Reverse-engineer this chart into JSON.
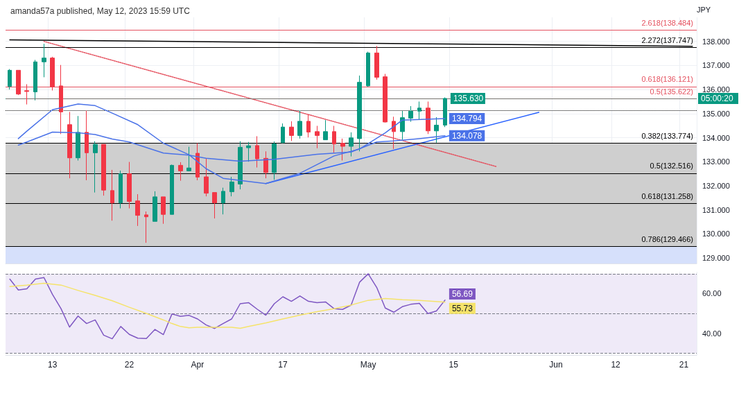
{
  "chart_data": [
    {
      "type": "candlestick",
      "title": "amanda57a published, May 12, 2023 15:59 UTC",
      "ylabel": "JPY",
      "categories": [
        null,
        null,
        null,
        null,
        null,
        null,
        null,
        null,
        null,
        null,
        null,
        null,
        null,
        null,
        null,
        null,
        null,
        null,
        null,
        null,
        null,
        null,
        null,
        null,
        null,
        null,
        null,
        null,
        null,
        null,
        null,
        null,
        null,
        null,
        null,
        null,
        null,
        null,
        null,
        null,
        null,
        null,
        null,
        null,
        null,
        null,
        null,
        null,
        null,
        null,
        null,
        null,
        null,
        null,
        null,
        null,
        null,
        null,
        null,
        null,
        null,
        null,
        null,
        null,
        null,
        null,
        null,
        null,
        null,
        null,
        null,
        null,
        null,
        null,
        null,
        null,
        null,
        null,
        null,
        null,
        null
      ],
      "ohlc": [
        [
          136.13,
          136.85,
          136.0,
          136.8
        ],
        [
          136.8,
          136.8,
          135.77,
          135.81
        ],
        [
          135.95,
          136.22,
          135.38,
          135.92
        ],
        [
          135.9,
          137.23,
          135.55,
          137.15
        ],
        [
          137.15,
          137.9,
          136.51,
          137.31
        ],
        [
          137.31,
          137.36,
          135.96,
          136.12
        ],
        [
          136.15,
          137.02,
          134.15,
          135.07
        ],
        [
          134.54,
          135.07,
          132.31,
          133.16
        ],
        [
          133.16,
          134.9,
          133.05,
          134.22
        ],
        [
          134.22,
          135.12,
          132.23,
          133.37
        ],
        [
          133.37,
          133.85,
          131.72,
          133.72
        ],
        [
          133.72,
          133.72,
          131.59,
          131.82
        ],
        [
          131.8,
          132.66,
          130.55,
          131.29
        ],
        [
          131.29,
          132.63,
          131.06,
          132.5
        ],
        [
          132.5,
          132.99,
          131.06,
          131.35
        ],
        [
          131.37,
          131.65,
          130.33,
          130.77
        ],
        [
          130.79,
          130.93,
          129.63,
          130.71
        ],
        [
          130.52,
          131.77,
          130.52,
          131.54
        ],
        [
          131.54,
          131.54,
          130.42,
          130.81
        ],
        [
          130.81,
          132.88,
          130.81,
          132.85
        ],
        [
          132.85,
          132.98,
          132.21,
          132.62
        ],
        [
          132.62,
          133.62,
          132.6,
          132.74
        ],
        [
          133.35,
          133.77,
          132.23,
          132.36
        ],
        [
          132.37,
          133.14,
          131.56,
          131.69
        ],
        [
          131.72,
          131.72,
          130.64,
          131.29
        ],
        [
          131.29,
          131.92,
          130.81,
          131.77
        ],
        [
          131.75,
          132.37,
          131.56,
          132.16
        ],
        [
          132.07,
          133.85,
          131.85,
          133.6
        ],
        [
          133.58,
          133.82,
          133.0,
          133.66
        ],
        [
          133.67,
          134.06,
          132.76,
          133.12
        ],
        [
          133.14,
          133.43,
          132.31,
          132.55
        ],
        [
          132.55,
          133.84,
          132.25,
          133.74
        ],
        [
          133.79,
          134.59,
          133.77,
          134.44
        ],
        [
          134.44,
          134.68,
          133.86,
          134.09
        ],
        [
          134.09,
          135.14,
          133.96,
          134.68
        ],
        [
          134.68,
          134.97,
          134.01,
          134.23
        ],
        [
          134.25,
          134.49,
          133.56,
          134.09
        ],
        [
          133.91,
          134.73,
          133.91,
          134.25
        ],
        [
          134.25,
          134.49,
          133.38,
          133.74
        ],
        [
          133.77,
          133.96,
          133.05,
          133.64
        ],
        [
          133.64,
          134.22,
          133.22,
          133.99
        ],
        [
          133.96,
          136.58,
          133.43,
          136.3
        ],
        [
          136.15,
          137.57,
          136.12,
          137.52
        ],
        [
          137.52,
          137.81,
          136.41,
          136.51
        ],
        [
          136.53,
          136.65,
          134.63,
          134.65
        ],
        [
          134.68,
          134.87,
          133.53,
          134.25
        ],
        [
          134.25,
          135.11,
          133.91,
          134.83
        ],
        [
          134.81,
          135.31,
          134.66,
          135.1
        ],
        [
          135.1,
          135.5,
          134.75,
          135.23
        ],
        [
          135.23,
          135.5,
          134.15,
          134.28
        ],
        [
          134.28,
          134.85,
          133.79,
          134.52
        ],
        [
          134.52,
          135.67,
          134.44,
          135.63
        ],
        null,
        null,
        null,
        null,
        null,
        null,
        null,
        null,
        null,
        null,
        null,
        null,
        null,
        null,
        null,
        null,
        null,
        null,
        null,
        null,
        null,
        null,
        null,
        null,
        null,
        null,
        null,
        null,
        null
      ],
      "value_labels": [
        null,
        null,
        null,
        null,
        null,
        null,
        null,
        null,
        null,
        null,
        null,
        null,
        null,
        null,
        null,
        null,
        null,
        null,
        null,
        null,
        null,
        null,
        null,
        null,
        null,
        null,
        null,
        null,
        null,
        null,
        null,
        null,
        null,
        null,
        null,
        null,
        null,
        null,
        null,
        null,
        null,
        null,
        null,
        null,
        null,
        null,
        null,
        null,
        null,
        null,
        null,
        "135.630",
        null,
        null,
        null,
        null,
        null,
        null,
        null,
        null,
        null,
        null,
        null,
        null,
        null,
        null,
        null,
        null,
        null,
        null,
        null,
        null,
        null,
        null,
        null,
        null,
        null,
        null,
        null,
        null,
        null
      ],
      "colors": [
        "#089981",
        "#f23645",
        "#f23645",
        "#089981",
        "#089981",
        "#f23645",
        "#f23645",
        "#f23645",
        "#089981",
        "#f23645",
        "#089981",
        "#f23645",
        "#f23645",
        "#089981",
        "#f23645",
        "#f23645",
        "#f23645",
        "#089981",
        "#f23645",
        "#089981",
        "#f23645",
        "#089981",
        "#f23645",
        "#f23645",
        "#f23645",
        "#089981",
        "#089981",
        "#089981",
        "#089981",
        "#f23645",
        "#f23645",
        "#089981",
        "#089981",
        "#f23645",
        "#089981",
        "#f23645",
        "#f23645",
        "#089981",
        "#f23645",
        "#f23645",
        "#089981",
        "#089981",
        "#089981",
        "#f23645",
        "#f23645",
        "#f23645",
        "#089981",
        "#089981",
        "#089981",
        "#f23645",
        "#089981",
        "#089981",
        null,
        null,
        null,
        null,
        null,
        null,
        null,
        null,
        null,
        null,
        null,
        null,
        null,
        null,
        null,
        null,
        null,
        null,
        null,
        null,
        null,
        null,
        null,
        null,
        null,
        null,
        null,
        null,
        null
      ],
      "series": [
        {
          "type": "line",
          "color": "#4a72e8",
          "line_style": "solid",
          "values": [
            null,
            133.96,
            134.27,
            null,
            null,
            135.16,
            null,
            null,
            135.4,
            null,
            135.33,
            null,
            135.02,
            null,
            null,
            134.54,
            null,
            null,
            133.77,
            null,
            null,
            133.29,
            null,
            132.71,
            null,
            132.31,
            null,
            null,
            null,
            null,
            132.09,
            null,
            null,
            null,
            132.52,
            null,
            null,
            null,
            133.24,
            null,
            null,
            133.53,
            null,
            null,
            134.2,
            null,
            134.73,
            null,
            null,
            null,
            null,
            134.794,
            null,
            null,
            null,
            null,
            null,
            null,
            null,
            null,
            null,
            null,
            null,
            null,
            null,
            null,
            null,
            null,
            null,
            null,
            null,
            null,
            null,
            null,
            null,
            null,
            null,
            null,
            null,
            null,
            null
          ],
          "value_labels": [
            null,
            null,
            null,
            null,
            null,
            null,
            null,
            null,
            null,
            null,
            null,
            null,
            null,
            null,
            null,
            null,
            null,
            null,
            null,
            null,
            null,
            null,
            null,
            null,
            null,
            null,
            null,
            null,
            null,
            null,
            null,
            null,
            null,
            null,
            null,
            null,
            null,
            null,
            null,
            null,
            null,
            null,
            null,
            null,
            null,
            null,
            null,
            null,
            null,
            null,
            null,
            "134.794",
            null,
            null,
            null,
            null,
            null,
            null,
            null,
            null,
            null,
            null,
            null,
            null,
            null,
            null,
            null,
            null,
            null,
            null,
            null,
            null,
            null,
            null,
            null,
            null,
            null,
            null,
            null,
            null,
            null
          ]
        },
        {
          "type": "line",
          "color": "#4a72e8",
          "line_style": "solid",
          "values": [
            null,
            133.69,
            133.82,
            null,
            null,
            134.23,
            null,
            null,
            134.2,
            null,
            134.13,
            null,
            133.94,
            null,
            133.82,
            null,
            null,
            null,
            133.36,
            null,
            null,
            133.27,
            null,
            133.14,
            null,
            null,
            null,
            133.02,
            null,
            null,
            null,
            133.1,
            null,
            null,
            null,
            null,
            133.31,
            null,
            null,
            null,
            133.4,
            null,
            null,
            133.82,
            null,
            133.86,
            null,
            null,
            133.96,
            null,
            null,
            134.078,
            null,
            null,
            null,
            null,
            null,
            null,
            null,
            null,
            null,
            null,
            null,
            null,
            null,
            null,
            null,
            null,
            null,
            null,
            null,
            null,
            null,
            null,
            null,
            null,
            null,
            null,
            null,
            null,
            null
          ],
          "value_labels": [
            null,
            null,
            null,
            null,
            null,
            null,
            null,
            null,
            null,
            null,
            null,
            null,
            null,
            null,
            null,
            null,
            null,
            null,
            null,
            null,
            null,
            null,
            null,
            null,
            null,
            null,
            null,
            null,
            null,
            null,
            null,
            null,
            null,
            null,
            null,
            null,
            null,
            null,
            null,
            null,
            null,
            null,
            null,
            null,
            null,
            null,
            null,
            null,
            null,
            null,
            null,
            "134.078",
            null,
            null,
            null,
            null,
            null,
            null,
            null,
            null,
            null,
            null,
            null,
            null,
            null,
            null,
            null,
            null,
            null,
            null,
            null,
            null,
            null,
            null,
            null,
            null,
            null,
            null,
            null,
            null,
            null
          ]
        },
        {
          "type": "line",
          "color": "#000000",
          "line_style": "solid",
          "values": [
            138.06,
            null,
            null,
            null,
            null,
            null,
            null,
            null,
            null,
            null,
            null,
            null,
            null,
            null,
            null,
            null,
            null,
            null,
            null,
            null,
            null,
            null,
            null,
            null,
            null,
            null,
            null,
            null,
            null,
            null,
            null,
            null,
            null,
            null,
            null,
            null,
            null,
            null,
            null,
            null,
            null,
            null,
            null,
            null,
            null,
            null,
            null,
            null,
            null,
            null,
            null,
            null,
            null,
            null,
            null,
            null,
            null,
            null,
            null,
            null,
            null,
            null,
            null,
            null,
            null,
            null,
            null,
            null,
            null,
            null,
            null,
            null,
            null,
            null,
            null,
            null,
            null,
            null,
            null,
            null,
            137.8
          ]
        },
        {
          "type": "line",
          "color": "#e5515f",
          "line_style": "dotted",
          "values": [
            null,
            null,
            null,
            null,
            138.0,
            null,
            null,
            null,
            null,
            null,
            null,
            null,
            null,
            null,
            null,
            null,
            null,
            null,
            null,
            null,
            null,
            null,
            null,
            null,
            null,
            null,
            null,
            null,
            null,
            null,
            null,
            null,
            null,
            null,
            null,
            null,
            null,
            null,
            null,
            null,
            null,
            null,
            null,
            null,
            null,
            null,
            null,
            null,
            null,
            null,
            null,
            null,
            null,
            null,
            null,
            null,
            null,
            132.8,
            null,
            null,
            null,
            null,
            null,
            null,
            null,
            null,
            null,
            null,
            null,
            null,
            null,
            null,
            null,
            null,
            null,
            null,
            null,
            null,
            null,
            null,
            null
          ]
        },
        {
          "type": "line",
          "color": "#2962ff",
          "line_style": "solid",
          "values": [
            null,
            null,
            null,
            null,
            null,
            null,
            null,
            null,
            null,
            null,
            null,
            null,
            null,
            null,
            null,
            null,
            null,
            null,
            null,
            null,
            null,
            null,
            null,
            null,
            null,
            null,
            null,
            null,
            null,
            null,
            132.09,
            null,
            null,
            null,
            null,
            null,
            null,
            null,
            null,
            null,
            null,
            null,
            null,
            null,
            null,
            null,
            null,
            null,
            null,
            null,
            null,
            null,
            null,
            null,
            null,
            null,
            null,
            null,
            null,
            null,
            null,
            null,
            135.05,
            null,
            null,
            null,
            null,
            null,
            null,
            null,
            null,
            null,
            null,
            null,
            null,
            null,
            null,
            null,
            null,
            null,
            null
          ]
        }
      ],
      "ylim": [
        128.77,
        139.0
      ],
      "yticks": [
        {
          "value": 129,
          "label": "129.000"
        },
        {
          "value": 130,
          "label": "130.000"
        },
        {
          "value": 131,
          "label": "131.000"
        },
        {
          "value": 132,
          "label": "132.000"
        },
        {
          "value": 133,
          "label": "133.000"
        },
        {
          "value": 134,
          "label": "134.000"
        },
        {
          "value": 135,
          "label": "135.000"
        },
        {
          "value": 136,
          "label": "136.000"
        },
        {
          "value": 137,
          "label": "137.000"
        },
        {
          "value": 138,
          "label": "138.000"
        }
      ],
      "ref_lines": [
        {
          "axis": "y",
          "value": 133.774,
          "label": "0.382(133.774)",
          "color": "#000000",
          "line_style": "solid"
        },
        {
          "axis": "y",
          "value": 132.516,
          "label": "0.5(132.516)",
          "color": "#000000",
          "line_style": "solid"
        },
        {
          "axis": "y",
          "value": 131.258,
          "label": "0.618(131.258)",
          "color": "#000000",
          "line_style": "solid"
        },
        {
          "axis": "y",
          "value": 129.466,
          "label": "0.786(129.466)",
          "color": "#000000",
          "line_style": "solid"
        },
        {
          "axis": "y",
          "value": 137.747,
          "label": "2.272(137.747)",
          "color": "#000000",
          "line_style": "solid"
        },
        {
          "axis": "y",
          "value": 138.484,
          "label": "2.618(138.484)",
          "color": "#e5515f",
          "line_style": "solid"
        },
        {
          "axis": "y",
          "value": 136.121,
          "label": "0.618(136.121)",
          "color": "#e5515f",
          "line_style": "solid"
        },
        {
          "axis": "y",
          "value": 135.622,
          "label": "0.5(135.622)",
          "color": "#e5515f",
          "line_style": "solid"
        },
        {
          "axis": "y",
          "value": 135.63,
          "label": null,
          "color": "#089981",
          "line_style": "dotted"
        },
        {
          "axis": "y",
          "value": 135.12,
          "label": null,
          "color": "#000000",
          "line_style": "dotted"
        }
      ],
      "bands": [
        {
          "axis": "y",
          "from": 129.466,
          "to": 133.774,
          "label": null,
          "color": "#cfcfcf"
        },
        {
          "axis": "y",
          "from": 128.77,
          "to": 129.466,
          "label": null,
          "color": "#d6e0fb"
        }
      ],
      "annotations": [
        "05:00:20"
      ],
      "marker": "none",
      "grid": true,
      "tick_labels": "y"
    },
    {
      "type": "line",
      "categories": [
        null,
        null,
        null,
        null,
        null,
        "13",
        null,
        null,
        null,
        null,
        null,
        null,
        null,
        null,
        "22",
        null,
        null,
        null,
        null,
        null,
        null,
        null,
        "Apr",
        null,
        null,
        null,
        null,
        null,
        null,
        null,
        null,
        null,
        "17",
        null,
        null,
        null,
        null,
        null,
        null,
        null,
        null,
        null,
        "May",
        null,
        null,
        null,
        null,
        null,
        null,
        null,
        null,
        null,
        "15",
        null,
        null,
        null,
        null,
        null,
        null,
        null,
        null,
        null,
        null,
        null,
        "Jun",
        null,
        null,
        null,
        null,
        null,
        null,
        "12",
        null,
        null,
        null,
        null,
        null,
        null,
        null,
        "21",
        null
      ],
      "series": [
        {
          "color": "#7e57c2",
          "values": [
            67.3,
            61.8,
            62.4,
            67.3,
            68.1,
            59.6,
            52.4,
            43.1,
            48.7,
            44.9,
            46.7,
            39.0,
            37.2,
            43.4,
            39.4,
            37.5,
            37.3,
            41.9,
            39.3,
            49.7,
            48.5,
            49.0,
            47.2,
            44.2,
            42.4,
            44.9,
            47.2,
            54.9,
            55.4,
            52.1,
            49.1,
            54.9,
            58.4,
            56.1,
            58.8,
            56.1,
            55.4,
            55.8,
            52.4,
            52.0,
            54.2,
            65.8,
            70.0,
            63.1,
            52.7,
            50.6,
            53.4,
            54.6,
            55.1,
            49.9,
            51.2,
            56.69,
            null,
            null,
            null,
            null,
            null,
            null,
            null,
            null,
            null,
            null,
            null,
            null,
            null,
            null,
            null,
            null,
            null,
            null,
            null,
            null,
            null,
            null,
            null,
            null,
            null,
            null,
            null,
            null,
            null
          ],
          "value_labels": [
            null,
            null,
            null,
            null,
            null,
            null,
            null,
            null,
            null,
            null,
            null,
            null,
            null,
            null,
            null,
            null,
            null,
            null,
            null,
            null,
            null,
            null,
            null,
            null,
            null,
            null,
            null,
            null,
            null,
            null,
            null,
            null,
            null,
            null,
            null,
            null,
            null,
            null,
            null,
            null,
            null,
            null,
            null,
            null,
            null,
            null,
            null,
            null,
            null,
            null,
            null,
            "56.69",
            null,
            null,
            null,
            null,
            null,
            null,
            null,
            null,
            null,
            null,
            null,
            null,
            null,
            null,
            null,
            null,
            null,
            null,
            null,
            null,
            null,
            null,
            null,
            null,
            null,
            null,
            null,
            null,
            null
          ]
        },
        {
          "color": "#f5e36a",
          "values": [
            63.6,
            null,
            64.3,
            null,
            65.2,
            null,
            64.3,
            null,
            61.6,
            null,
            59.1,
            null,
            56.4,
            null,
            53.1,
            null,
            50.0,
            null,
            46.7,
            44.9,
            43.4,
            42.7,
            43.0,
            null,
            43.0,
            null,
            43.0,
            42.5,
            43.4,
            null,
            45.2,
            null,
            47.2,
            null,
            49.1,
            null,
            50.9,
            null,
            52.4,
            null,
            54.2,
            null,
            56.6,
            null,
            57.5,
            null,
            56.9,
            null,
            56.6,
            null,
            null,
            55.73,
            null,
            null,
            null,
            null,
            null,
            null,
            null,
            null,
            null,
            null,
            null,
            null,
            null,
            null,
            null,
            null,
            null,
            null,
            null,
            null,
            null,
            null,
            null,
            null,
            null,
            null,
            null,
            null,
            null
          ],
          "value_labels": [
            null,
            null,
            null,
            null,
            null,
            null,
            null,
            null,
            null,
            null,
            null,
            null,
            null,
            null,
            null,
            null,
            null,
            null,
            null,
            null,
            null,
            null,
            null,
            null,
            null,
            null,
            null,
            null,
            null,
            null,
            null,
            null,
            null,
            null,
            null,
            null,
            null,
            null,
            null,
            null,
            null,
            null,
            null,
            null,
            null,
            null,
            null,
            null,
            null,
            null,
            null,
            "55.73",
            null,
            null,
            null,
            null,
            null,
            null,
            null,
            null,
            null,
            null,
            null,
            null,
            null,
            null,
            null,
            null,
            null,
            null,
            null,
            null,
            null,
            null,
            null,
            null,
            null,
            null,
            null,
            null,
            null
          ]
        }
      ],
      "ylim": [
        29,
        71
      ],
      "yticks": [
        {
          "value": 40,
          "label": "40.00"
        },
        {
          "value": 60,
          "label": "60.00"
        }
      ],
      "ref_lines": [
        {
          "axis": "y",
          "value": 70,
          "label": null,
          "color": "#787b86",
          "line_style": "dashed"
        },
        {
          "axis": "y",
          "value": 50,
          "label": null,
          "color": "#787b86",
          "line_style": "dashed"
        },
        {
          "axis": "y",
          "value": 30,
          "label": null,
          "color": "#787b86",
          "line_style": "dashed"
        }
      ],
      "bands": [
        {
          "axis": "y",
          "from": 30,
          "to": 70,
          "label": null,
          "color": "#efeaf8"
        }
      ],
      "marker": "none",
      "grid": true
    }
  ]
}
